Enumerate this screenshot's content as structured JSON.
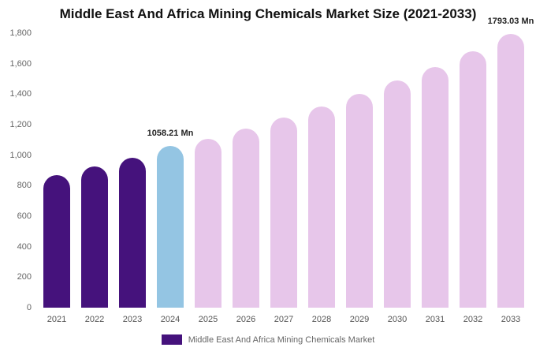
{
  "chart_data": {
    "type": "bar",
    "title": "Middle East And Africa Mining Chemicals Market Size (2021-2033)",
    "categories": [
      "2021",
      "2022",
      "2023",
      "2024",
      "2025",
      "2026",
      "2027",
      "2028",
      "2029",
      "2030",
      "2031",
      "2032",
      "2033"
    ],
    "values": [
      870,
      925,
      985,
      1058.21,
      1105,
      1175,
      1245,
      1320,
      1400,
      1490,
      1580,
      1680,
      1793.03
    ],
    "bar_colors": [
      "#45127c",
      "#45127c",
      "#45127c",
      "#94c5e3",
      "#e7c6ea",
      "#e7c6ea",
      "#e7c6ea",
      "#e7c6ea",
      "#e7c6ea",
      "#e7c6ea",
      "#e7c6ea",
      "#e7c6ea",
      "#e7c6ea"
    ],
    "color_roles": {
      "historical": "#45127c",
      "current_year": "#94c5e3",
      "forecast": "#e7c6ea"
    },
    "annotations": [
      {
        "category": "2024",
        "text": "1058.21 Mn"
      },
      {
        "category": "2033",
        "text": "1793.03 Mn"
      }
    ],
    "xlabel": "",
    "ylabel": "",
    "ylim": [
      0,
      1800
    ],
    "ytick_step": 200,
    "grid": false,
    "legend": {
      "label": "Middle East And Africa Mining Chemicals Market",
      "color": "#45127c",
      "position": "bottom"
    }
  }
}
